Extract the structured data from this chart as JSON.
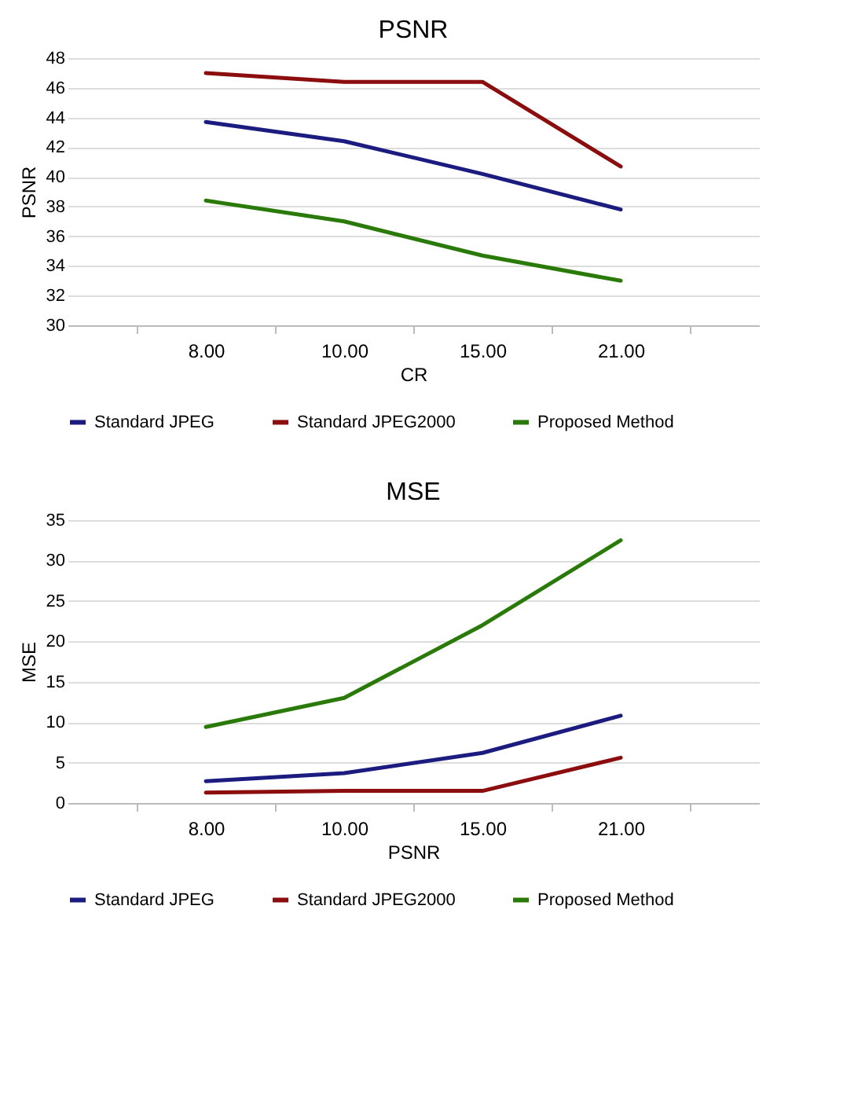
{
  "chart_data": [
    {
      "type": "line",
      "title": "PSNR",
      "xlabel": "CR",
      "ylabel": "PSNR",
      "categories": [
        "8.00",
        "10.00",
        "15.00",
        "21.00"
      ],
      "series": [
        {
          "name": "Standard JPEG",
          "color": "#1c1c80",
          "values": [
            43.7,
            42.4,
            40.2,
            37.8
          ]
        },
        {
          "name": "Standard JPEG2000",
          "color": "#8b0d0d",
          "values": [
            47.0,
            46.4,
            46.4,
            40.7
          ]
        },
        {
          "name": "Proposed Method",
          "color": "#2a7a0a",
          "values": [
            38.4,
            37.0,
            34.7,
            33.0
          ]
        }
      ],
      "ylim": [
        30,
        48
      ],
      "yticks": [
        30,
        32,
        34,
        36,
        38,
        40,
        42,
        44,
        46,
        48
      ],
      "grid": "y",
      "legend": "bottom",
      "marker": "none",
      "line_style": "solid"
    },
    {
      "type": "line",
      "title": "MSE",
      "xlabel": "PSNR",
      "ylabel": "MSE",
      "categories": [
        "8.00",
        "10.00",
        "15.00",
        "21.00"
      ],
      "series": [
        {
          "name": "Standard JPEG",
          "color": "#1c1c80",
          "values": [
            2.7,
            3.7,
            6.2,
            10.8
          ]
        },
        {
          "name": "Standard JPEG2000",
          "color": "#8b0d0d",
          "values": [
            1.3,
            1.5,
            1.5,
            5.6
          ]
        },
        {
          "name": "Proposed Method",
          "color": "#2a7a0a",
          "values": [
            9.4,
            13.0,
            22.0,
            32.5
          ]
        }
      ],
      "ylim": [
        0,
        35
      ],
      "yticks": [
        0,
        5,
        10,
        15,
        20,
        25,
        30,
        35
      ],
      "grid": "y",
      "legend": "bottom",
      "marker": "none",
      "line_style": "solid"
    }
  ]
}
